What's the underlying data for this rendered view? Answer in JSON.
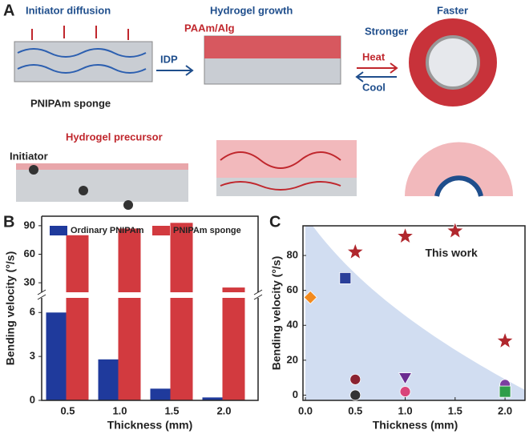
{
  "panels": {
    "a": "A",
    "b": "B",
    "c": "C"
  },
  "diagram": {
    "initiator_diffusion": "Initiator diffusion",
    "hydrogel_growth": "Hydrogel growth",
    "faster": "Faster",
    "stronger": "Stronger",
    "paam_alg": "PAAm/Alg",
    "idp": "IDP",
    "heat": "Heat",
    "cool": "Cool",
    "pnipam_sponge": "PNIPAm sponge",
    "hydrogel_precursor": "Hydrogel precursor",
    "initiator": "Initiator"
  },
  "chart_data": [
    {
      "type": "broken-bar",
      "x_label": "Thickness (mm)",
      "y_label": "Bending velocity (°/s)",
      "categories": [
        "0.5",
        "1.0",
        "1.5",
        "2.0"
      ],
      "series": [
        {
          "name": "Ordinary PNIPAm",
          "color": "#1f3a9c",
          "values": [
            6.0,
            2.8,
            0.8,
            0.2
          ]
        },
        {
          "name": "PNIPAm sponge",
          "color": "#d23a3f",
          "values": [
            80,
            87,
            93,
            25
          ]
        }
      ],
      "ylim": [
        0,
        7
      ],
      "yticks": [
        0,
        3,
        6
      ],
      "y_break_lim": [
        20,
        100
      ],
      "y_break_ticks": [
        30,
        60,
        90
      ],
      "legend": "top"
    },
    {
      "type": "scatter",
      "x_label": "Thickness (mm)",
      "y_label": "Bending velocity (°/s)",
      "annotation": "This work",
      "xlim": [
        0,
        2.2
      ],
      "xticks": [
        {
          "value": 0,
          "label": "0.0"
        },
        0.5,
        {
          "value": 1,
          "label": "1.0"
        },
        1.5,
        {
          "value": 2,
          "label": "2.0"
        }
      ],
      "ylim": [
        -3,
        97
      ],
      "yticks": [
        0,
        20,
        40,
        60,
        80
      ],
      "series": [
        {
          "color": "#b0272d",
          "marker": "star",
          "x": [
            0.5,
            1.0,
            1.5,
            2.0
          ],
          "values": [
            82,
            91,
            94,
            31
          ]
        },
        {
          "color": "#2a3f9a",
          "marker": "square",
          "x": [
            0.4
          ],
          "values": [
            67
          ]
        },
        {
          "color": "#f28a1e",
          "marker": "diamond",
          "x": [
            0.05
          ],
          "values": [
            56
          ]
        },
        {
          "color": "#8b2332",
          "marker": "circle",
          "x": [
            0.5
          ],
          "values": [
            9
          ]
        },
        {
          "color": "#333333",
          "marker": "circle",
          "x": [
            0.5
          ],
          "values": [
            0
          ]
        },
        {
          "color": "#6a2c91",
          "marker": "triangle",
          "x": [
            1.0
          ],
          "values": [
            10
          ]
        },
        {
          "color": "#d9447a",
          "marker": "circle",
          "x": [
            1.0
          ],
          "values": [
            2
          ]
        },
        {
          "color": "#7b3fa0",
          "marker": "circle",
          "x": [
            2.0
          ],
          "values": [
            6
          ]
        },
        {
          "color": "#2e9e4a",
          "marker": "square",
          "x": [
            2.0
          ],
          "values": [
            2
          ]
        }
      ]
    }
  ]
}
